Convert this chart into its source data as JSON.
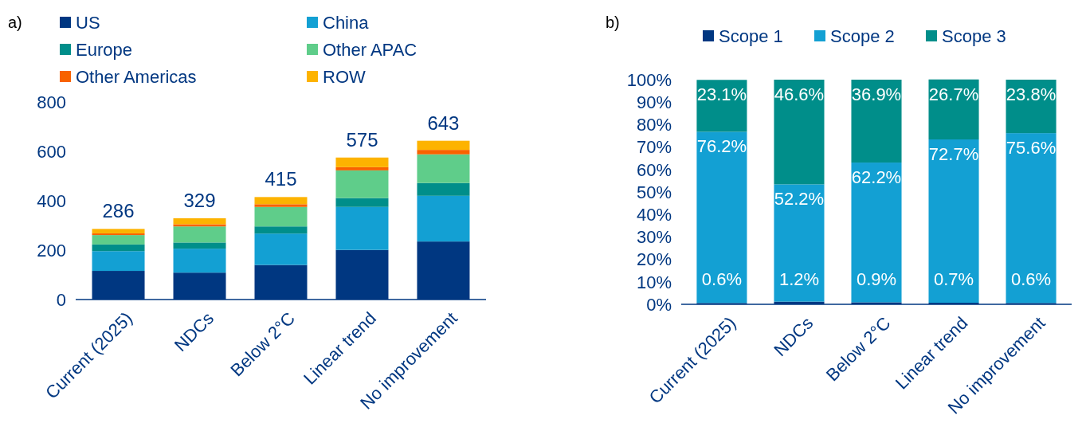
{
  "chart_data": [
    {
      "type": "bar",
      "title": "a)",
      "stacked": true,
      "legend": "top",
      "categories": [
        "Current (2025)",
        "NDCs",
        "Below 2°C",
        "Linear trend",
        "No improvement"
      ],
      "ylim": [
        0,
        800
      ],
      "yticks": [
        0,
        200,
        400,
        600,
        800
      ],
      "totals": [
        "286",
        "329",
        "415",
        "575",
        "643"
      ],
      "series": [
        {
          "name": "US",
          "color": "#003781",
          "values": [
            116,
            109,
            140,
            201,
            235
          ]
        },
        {
          "name": "China",
          "color": "#13a0d3",
          "values": [
            80,
            97,
            127,
            174,
            185
          ]
        },
        {
          "name": "Europe",
          "color": "#008e8a",
          "values": [
            27,
            25,
            29,
            36,
            52
          ]
        },
        {
          "name": "Other APAC",
          "color": "#5fcd8a",
          "values": [
            38,
            65,
            79,
            112,
            116
          ]
        },
        {
          "name": "Other Americas",
          "color": "#f86200",
          "values": [
            7,
            9,
            11,
            13,
            18
          ]
        },
        {
          "name": "ROW",
          "color": "#fdb300",
          "values": [
            18,
            24,
            29,
            39,
            37
          ]
        }
      ]
    },
    {
      "type": "bar",
      "title": "b)",
      "stacked": true,
      "legend": "top",
      "categories": [
        "Current (2025)",
        "NDCs",
        "Below 2°C",
        "Linear trend",
        "No improvement"
      ],
      "ylim": [
        0,
        100
      ],
      "yticks": [
        {
          "value": 0,
          "label": "0%"
        },
        {
          "value": 10,
          "label": "10%"
        },
        {
          "value": 20,
          "label": "20%"
        },
        {
          "value": 30,
          "label": "30%"
        },
        {
          "value": 40,
          "label": "40%"
        },
        {
          "value": 50,
          "label": "50%"
        },
        {
          "value": 60,
          "label": "60%"
        },
        {
          "value": 70,
          "label": "70%"
        },
        {
          "value": 80,
          "label": "80%"
        },
        {
          "value": 90,
          "label": "90%"
        },
        {
          "value": 100,
          "label": "100%"
        }
      ],
      "series": [
        {
          "name": "Scope 1",
          "color": "#003781",
          "values": [
            0.6,
            1.2,
            0.9,
            0.7,
            0.6
          ],
          "value_labels": [
            "0.6%",
            "1.2%",
            "0.9%",
            "0.7%",
            "0.6%"
          ]
        },
        {
          "name": "Scope 2",
          "color": "#13a0d3",
          "values": [
            76.2,
            52.2,
            62.2,
            72.7,
            75.6
          ],
          "value_labels": [
            "76.2%",
            "52.2%",
            "62.2%",
            "72.7%",
            "75.6%"
          ]
        },
        {
          "name": "Scope 3",
          "color": "#008e8a",
          "values": [
            23.1,
            46.6,
            36.9,
            26.7,
            23.8
          ],
          "value_labels": [
            "23.1%",
            "46.6%",
            "36.9%",
            "26.7%",
            "23.8%"
          ]
        }
      ]
    }
  ]
}
